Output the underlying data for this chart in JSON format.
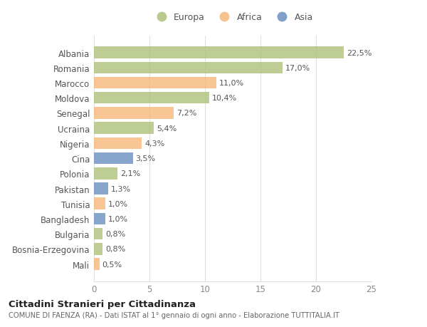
{
  "categories": [
    "Albania",
    "Romania",
    "Marocco",
    "Moldova",
    "Senegal",
    "Ucraina",
    "Nigeria",
    "Cina",
    "Polonia",
    "Pakistan",
    "Tunisia",
    "Bangladesh",
    "Bulgaria",
    "Bosnia-Erzegovina",
    "Mali"
  ],
  "values": [
    22.5,
    17.0,
    11.0,
    10.4,
    7.2,
    5.4,
    4.3,
    3.5,
    2.1,
    1.3,
    1.0,
    1.0,
    0.8,
    0.8,
    0.5
  ],
  "labels": [
    "22,5%",
    "17,0%",
    "11,0%",
    "10,4%",
    "7,2%",
    "5,4%",
    "4,3%",
    "3,5%",
    "2,1%",
    "1,3%",
    "1,0%",
    "1,0%",
    "0,8%",
    "0,8%",
    "0,5%"
  ],
  "continent": [
    "Europa",
    "Europa",
    "Africa",
    "Europa",
    "Africa",
    "Europa",
    "Africa",
    "Asia",
    "Europa",
    "Asia",
    "Africa",
    "Asia",
    "Europa",
    "Europa",
    "Africa"
  ],
  "colors": {
    "Europa": "#adc178",
    "Africa": "#f5b87a",
    "Asia": "#6b8fbf"
  },
  "legend_labels": [
    "Europa",
    "Africa",
    "Asia"
  ],
  "legend_colors": [
    "#adc178",
    "#f5b87a",
    "#6b8fbf"
  ],
  "xlim": [
    0,
    25
  ],
  "xticks": [
    0,
    5,
    10,
    15,
    20,
    25
  ],
  "title": "Cittadini Stranieri per Cittadinanza",
  "subtitle": "COMUNE DI FAENZA (RA) - Dati ISTAT al 1° gennaio di ogni anno - Elaborazione TUTTITALIA.IT",
  "bg_color": "#ffffff",
  "bar_height": 0.78,
  "grid_color": "#e0e0e0",
  "label_fontsize": 8,
  "ytick_fontsize": 8.5,
  "xtick_fontsize": 8.5
}
